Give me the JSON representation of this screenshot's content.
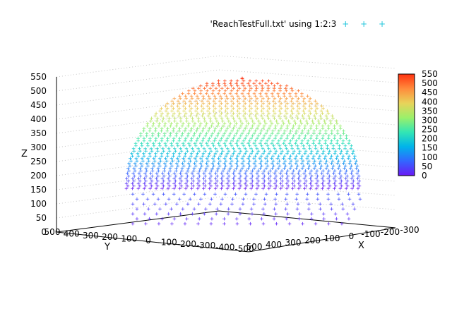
{
  "legend": {
    "label": "'ReachTestFull.txt' using 1:2:3",
    "marker": "+ + +",
    "color": "#21c6dc"
  },
  "chart_data": {
    "type": "scatter",
    "subtype": "3d-point-cloud-hemisphere",
    "xlabel": "X",
    "ylabel": "Y",
    "zlabel": "Z",
    "xlim": [
      -300,
      550
    ],
    "ylim": [
      -500,
      500
    ],
    "zlim": [
      0,
      550
    ],
    "x_ticks": [
      "-300",
      "-200",
      "-100",
      "0",
      "100",
      "200",
      "300",
      "400",
      "500"
    ],
    "y_ticks": [
      "500",
      "400",
      "300",
      "200",
      "100",
      "0",
      "-100",
      "-200",
      "-300",
      "-400",
      "-500"
    ],
    "z_ticks": [
      "0",
      "50",
      "100",
      "150",
      "200",
      "250",
      "300",
      "350",
      "400",
      "450",
      "500",
      "550"
    ],
    "colorbar": {
      "ticks": [
        "0",
        "50",
        "100",
        "150",
        "200",
        "250",
        "300",
        "350",
        "400",
        "450",
        "500",
        "550"
      ],
      "range": [
        0,
        550
      ],
      "palette": [
        "#6a19f5",
        "#3366ff",
        "#00b4ea",
        "#33e6b4",
        "#9bf06a",
        "#e8d35a",
        "#ff8b3c",
        "#ff3210"
      ]
    },
    "grid": true,
    "marker": "+",
    "shape": {
      "center_x": 100,
      "center_y": 0,
      "radius": 500,
      "z_min": 0,
      "z_max": 550
    }
  }
}
